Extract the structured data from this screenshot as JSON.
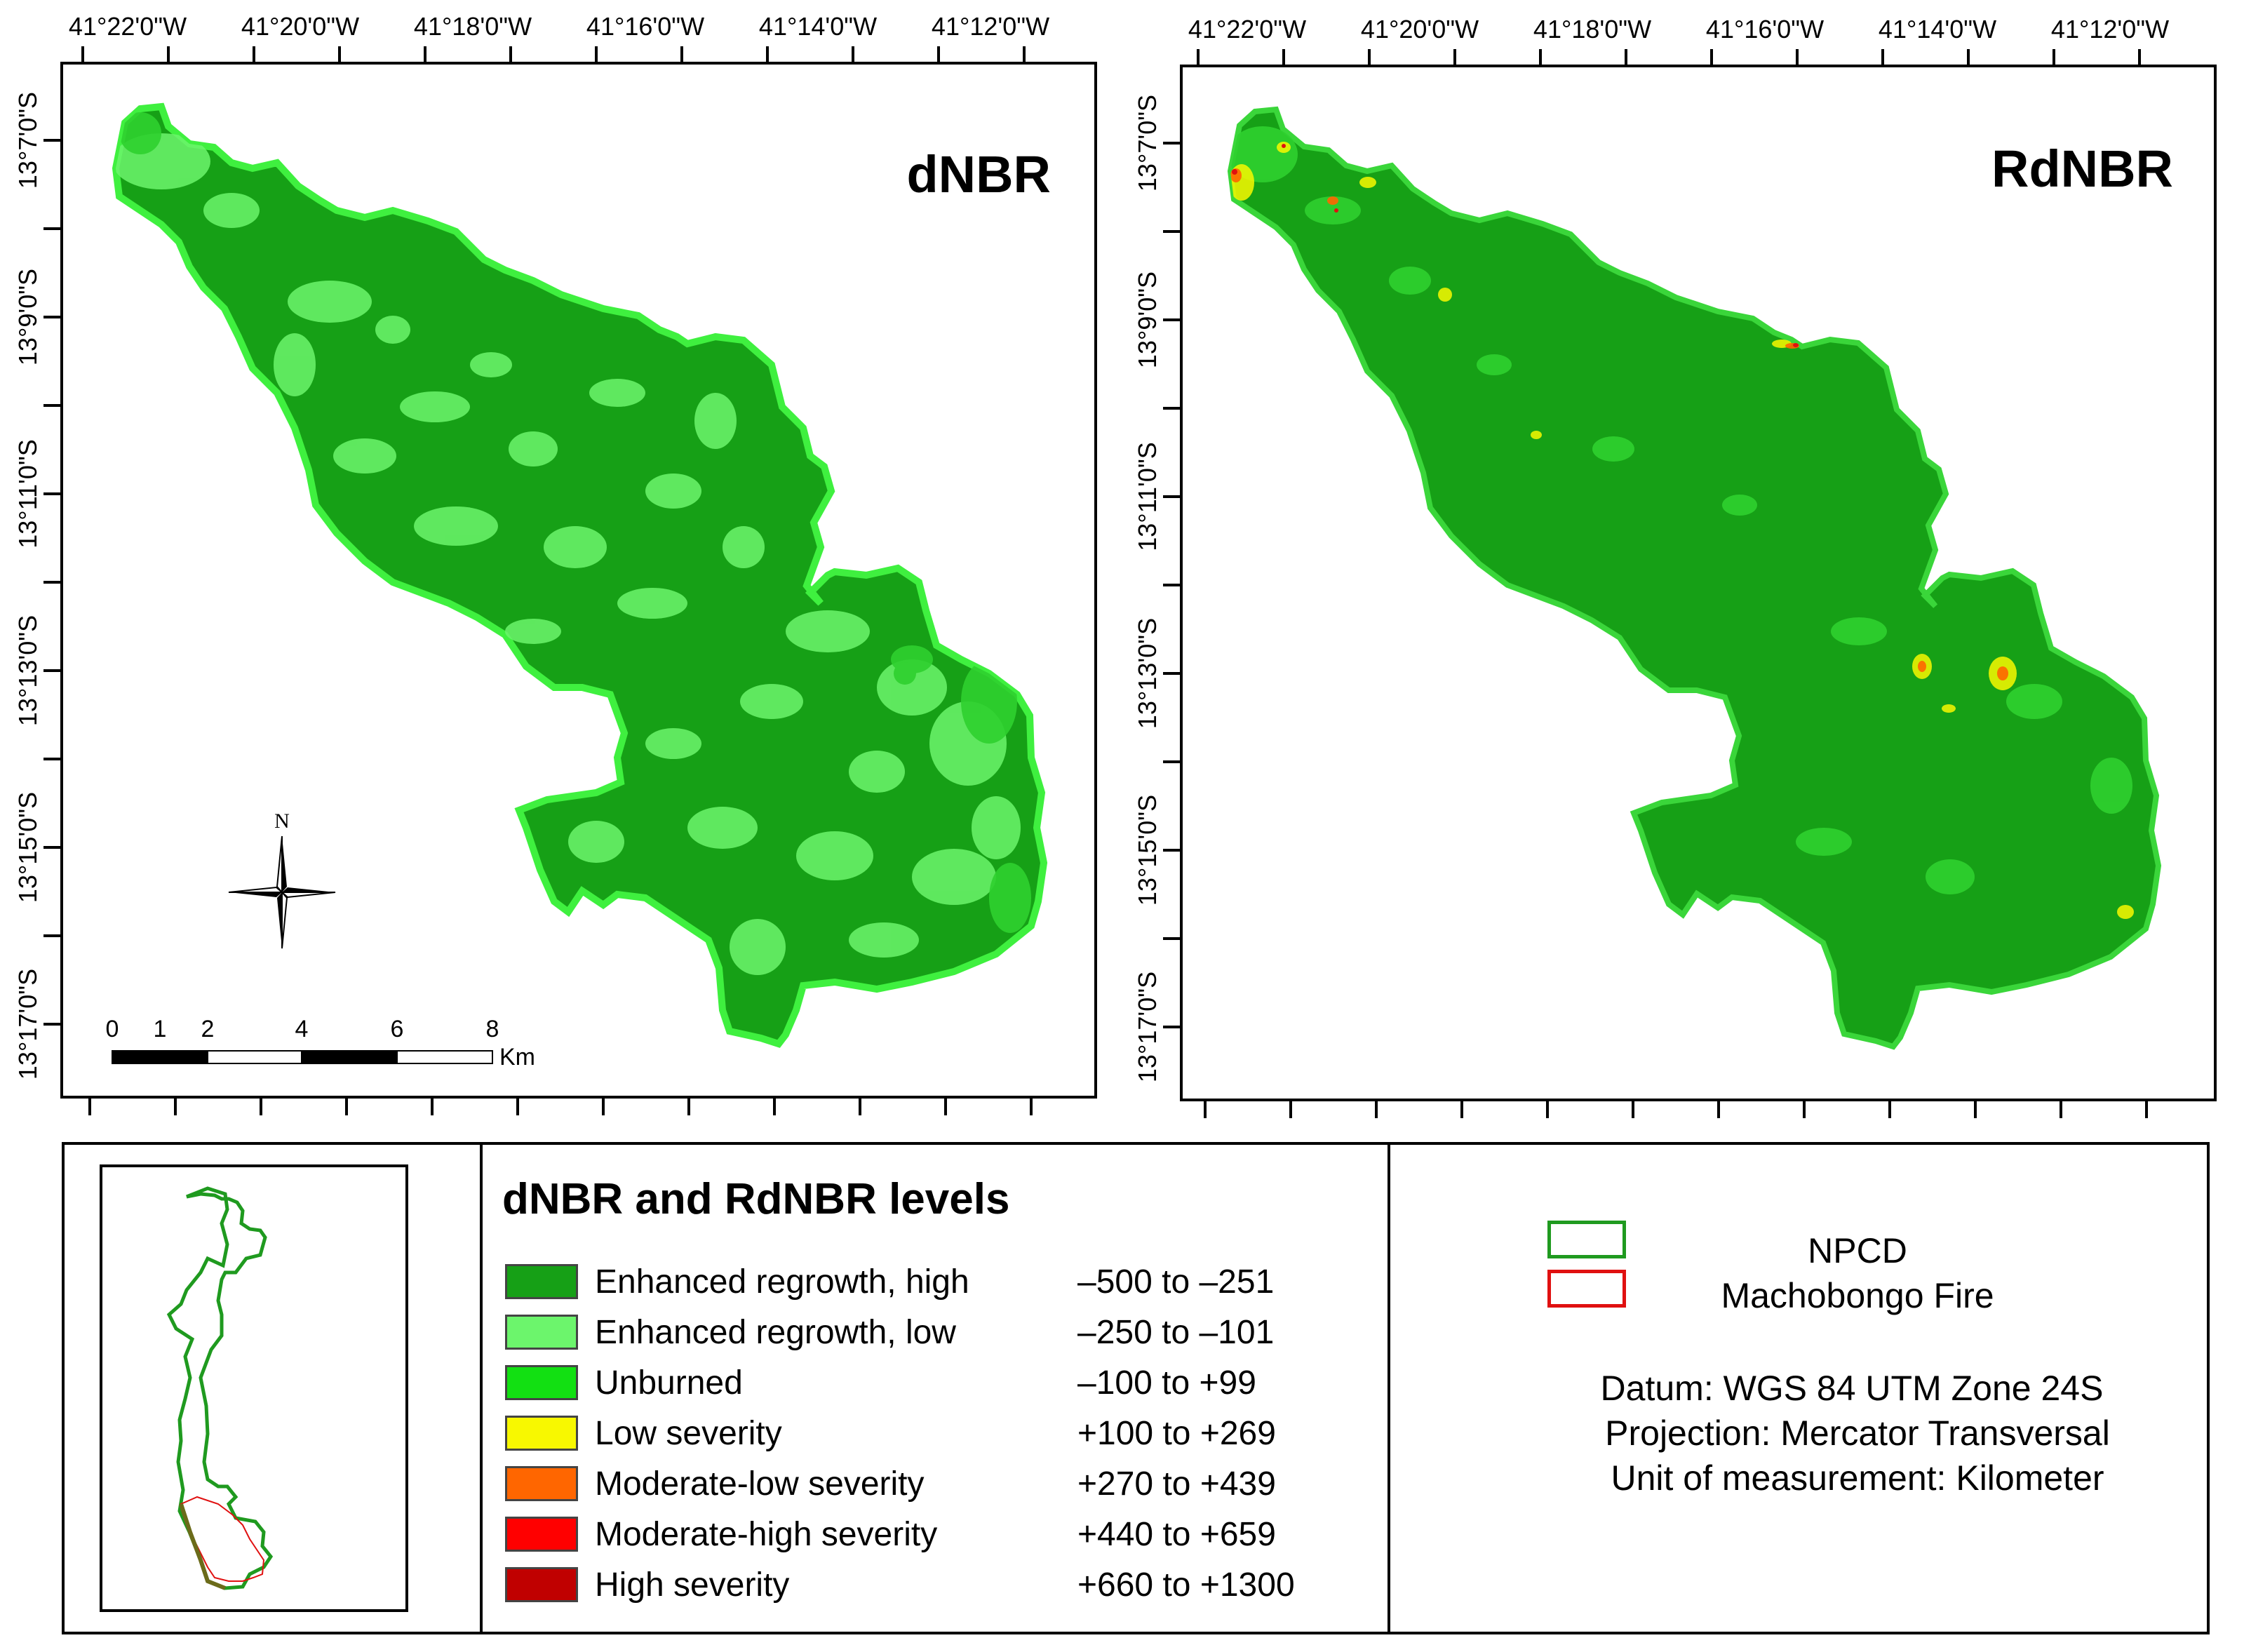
{
  "maps": [
    {
      "title": "dNBR",
      "x_ticks": [
        "41°22'0\"W",
        "41°20'0\"W",
        "41°18'0\"W",
        "41°16'0\"W",
        "41°14'0\"W",
        "41°12'0\"W"
      ],
      "y_ticks": [
        "13°7'0\"S",
        "13°9'0\"S",
        "13°11'0\"S",
        "13°13'0\"S",
        "13°15'0\"S",
        "13°17'0\"S"
      ]
    },
    {
      "title": "RdNBR",
      "x_ticks": [
        "41°22'0\"W",
        "41°20'0\"W",
        "41°18'0\"W",
        "41°16'0\"W",
        "41°14'0\"W",
        "41°12'0\"W"
      ],
      "y_ticks": [
        "13°7'0\"S",
        "13°9'0\"S",
        "13°11'0\"S",
        "13°13'0\"S",
        "13°15'0\"S",
        "13°17'0\"S"
      ]
    }
  ],
  "north_arrow": {
    "label": "N"
  },
  "scale_bar": {
    "ticks": [
      "0",
      "1",
      "2",
      "4",
      "6",
      "8"
    ],
    "unit": "Km"
  },
  "legend": {
    "title": "dNBR and RdNBR levels",
    "items": [
      {
        "label": "Enhanced regrowth, high",
        "range": "–500 to –251",
        "color": "#16a016"
      },
      {
        "label": "Enhanced regrowth, low",
        "range": "–250 to –101",
        "color": "#6cf56c"
      },
      {
        "label": "Unburned",
        "range": "–100 to +99",
        "color": "#12e012"
      },
      {
        "label": "Low severity",
        "range": "+100 to +269",
        "color": "#f8f800"
      },
      {
        "label": "Moderate-low severity",
        "range": "+270 to +439",
        "color": "#ff6600"
      },
      {
        "label": "Moderate-high severity",
        "range": "+440 to +659",
        "color": "#ff0000"
      },
      {
        "label": "High severity",
        "range": "+660 to +1300",
        "color": "#c00000"
      }
    ]
  },
  "boundaries": [
    {
      "label": "NPCD",
      "color": "#1f9a1f"
    },
    {
      "label": "Machobongo Fire",
      "color": "#e01010"
    }
  ],
  "map_info": {
    "datum": "Datum: WGS 84 UTM Zone 24S",
    "projection": "Projection: Mercator Transversal",
    "unit": "Unit of measurement: Kilometer"
  }
}
